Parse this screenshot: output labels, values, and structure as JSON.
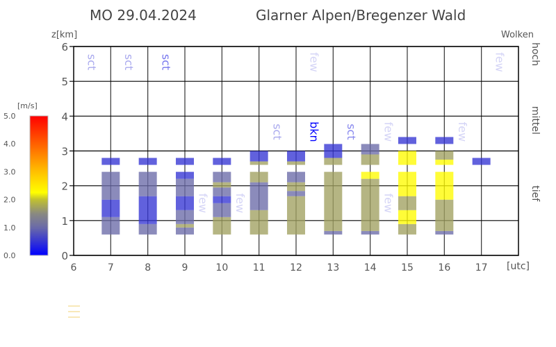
{
  "header": {
    "date": "MO 29.04.2024",
    "region": "Glarner Alpen/Bregenzer Wald"
  },
  "colorbar": {
    "unit": "[m/s]",
    "ticks": [
      "0.0",
      "1.0",
      "2.0",
      "3.0",
      "4.0",
      "5.0"
    ],
    "stops": [
      {
        "v": 0,
        "c": "#0000ff"
      },
      {
        "v": 1,
        "c": "#6a6aa8"
      },
      {
        "v": 1.5,
        "c": "#8a8a80"
      },
      {
        "v": 2,
        "c": "#c0c030"
      },
      {
        "v": 2.25,
        "c": "#ffff00"
      },
      {
        "v": 3,
        "c": "#ffc000"
      },
      {
        "v": 5,
        "c": "#ff0000"
      }
    ]
  },
  "chart_data": {
    "type": "heatmap",
    "xlabel": "[utc]",
    "ylabel": "z[km]",
    "right_label": "Wolken",
    "xlim": [
      6,
      18
    ],
    "ylim": [
      0,
      6
    ],
    "xticks": [
      "6",
      "7",
      "8",
      "9",
      "10",
      "11",
      "12",
      "13",
      "14",
      "15",
      "16",
      "17"
    ],
    "yticks": [
      "0",
      "1",
      "2",
      "3",
      "4",
      "5",
      "6"
    ],
    "levels": [
      {
        "name": "hoch",
        "z": 5.5
      },
      {
        "name": "mittel",
        "z": 3.6
      },
      {
        "name": "tief",
        "z": 1.5
      }
    ],
    "grid": true,
    "columns": [
      {
        "hour": 7,
        "segments": [
          [
            0.6,
            1.1,
            1.0
          ],
          [
            1.1,
            1.6,
            0.5
          ],
          [
            1.6,
            2.4,
            1.0
          ],
          [
            2.6,
            2.8,
            0.5
          ]
        ]
      },
      {
        "hour": 8,
        "segments": [
          [
            0.6,
            0.9,
            1.0
          ],
          [
            0.9,
            1.7,
            0.5
          ],
          [
            1.7,
            2.4,
            1.0
          ],
          [
            2.6,
            2.8,
            0.5
          ]
        ]
      },
      {
        "hour": 9,
        "segments": [
          [
            0.6,
            0.8,
            1.0
          ],
          [
            0.8,
            0.9,
            1.7
          ],
          [
            0.9,
            1.3,
            1.0
          ],
          [
            1.3,
            1.7,
            0.5
          ],
          [
            1.7,
            2.2,
            1.0
          ],
          [
            2.2,
            2.4,
            0.5
          ],
          [
            2.6,
            2.8,
            0.5
          ]
        ]
      },
      {
        "hour": 10,
        "segments": [
          [
            0.6,
            1.1,
            1.7
          ],
          [
            1.1,
            1.5,
            1.0
          ],
          [
            1.5,
            1.7,
            0.5
          ],
          [
            1.7,
            1.95,
            1.0
          ],
          [
            1.95,
            2.1,
            1.7
          ],
          [
            2.1,
            2.4,
            1.0
          ],
          [
            2.6,
            2.8,
            0.5
          ]
        ]
      },
      {
        "hour": 11,
        "segments": [
          [
            0.6,
            1.3,
            1.7
          ],
          [
            1.3,
            2.1,
            1.0
          ],
          [
            2.1,
            2.4,
            1.7
          ],
          [
            2.6,
            2.7,
            1.7
          ],
          [
            2.7,
            3.0,
            0.5
          ]
        ]
      },
      {
        "hour": 12,
        "segments": [
          [
            0.6,
            1.7,
            1.7
          ],
          [
            1.7,
            1.85,
            1.0
          ],
          [
            1.85,
            2.1,
            1.7
          ],
          [
            2.1,
            2.4,
            1.0
          ],
          [
            2.6,
            2.7,
            1.7
          ],
          [
            2.7,
            3.0,
            0.5
          ]
        ]
      },
      {
        "hour": 13,
        "segments": [
          [
            0.6,
            0.7,
            1.0
          ],
          [
            0.7,
            2.4,
            1.7
          ],
          [
            2.6,
            2.8,
            1.7
          ],
          [
            2.8,
            3.2,
            0.5
          ]
        ]
      },
      {
        "hour": 14,
        "segments": [
          [
            0.6,
            0.7,
            1.0
          ],
          [
            0.7,
            2.2,
            1.7
          ],
          [
            2.2,
            2.4,
            2.3
          ],
          [
            2.6,
            2.9,
            1.7
          ],
          [
            2.9,
            3.2,
            1.0
          ]
        ]
      },
      {
        "hour": 15,
        "segments": [
          [
            0.6,
            0.9,
            1.7
          ],
          [
            0.9,
            1.3,
            2.3
          ],
          [
            1.3,
            1.7,
            1.7
          ],
          [
            1.7,
            2.4,
            2.3
          ],
          [
            2.6,
            3.0,
            2.3
          ],
          [
            3.2,
            3.4,
            0.5
          ]
        ]
      },
      {
        "hour": 16,
        "segments": [
          [
            0.6,
            0.7,
            1.0
          ],
          [
            0.7,
            1.6,
            1.7
          ],
          [
            1.6,
            2.4,
            2.3
          ],
          [
            2.6,
            2.75,
            2.3
          ],
          [
            2.75,
            3.0,
            1.7
          ],
          [
            3.2,
            3.4,
            0.5
          ]
        ]
      },
      {
        "hour": 17,
        "segments": [
          [
            2.6,
            2.8,
            0.5
          ]
        ]
      }
    ],
    "cloud_labels": [
      {
        "text": "sct",
        "hour": 6.5,
        "z": 5.55,
        "color": "#aaaaee"
      },
      {
        "text": "sct",
        "hour": 7.5,
        "z": 5.55,
        "color": "#aaaaee"
      },
      {
        "text": "sct",
        "hour": 8.5,
        "z": 5.55,
        "color": "#7777ee"
      },
      {
        "text": "few",
        "hour": 12.5,
        "z": 5.55,
        "color": "#d4d4f6"
      },
      {
        "text": "few",
        "hour": 17.5,
        "z": 5.55,
        "color": "#d4d4f6"
      },
      {
        "text": "sct",
        "hour": 11.5,
        "z": 3.55,
        "color": "#aaaaee"
      },
      {
        "text": "bkn",
        "hour": 12.5,
        "z": 3.55,
        "color": "#0000ff"
      },
      {
        "text": "sct",
        "hour": 13.5,
        "z": 3.55,
        "color": "#8888ee"
      },
      {
        "text": "few",
        "hour": 14.5,
        "z": 3.55,
        "color": "#d4d4f6"
      },
      {
        "text": "few",
        "hour": 16.5,
        "z": 3.55,
        "color": "#d4d4f6"
      },
      {
        "text": "few",
        "hour": 9.5,
        "z": 1.5,
        "color": "#d4d4f6"
      },
      {
        "text": "few",
        "hour": 10.5,
        "z": 1.5,
        "color": "#d4d4f6"
      },
      {
        "text": "few",
        "hour": 14.5,
        "z": 1.5,
        "color": "#d4d4f6"
      }
    ]
  }
}
